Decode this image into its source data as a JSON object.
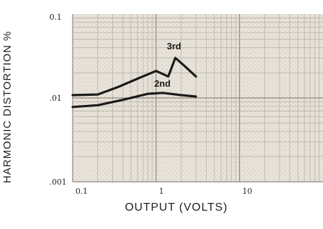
{
  "chart_data": {
    "type": "line",
    "title": "",
    "xlabel": "OUTPUT (VOLTS)",
    "ylabel": "HARMONIC DISTORTION %",
    "xscale": "log",
    "yscale": "log",
    "xlim": [
      0.1,
      100
    ],
    "ylim": [
      0.001,
      0.1
    ],
    "x_ticks": [
      0.1,
      1,
      10
    ],
    "x_tick_labels": [
      "0.1",
      "1",
      "10"
    ],
    "y_ticks": [
      0.1,
      0.01,
      0.001
    ],
    "y_tick_labels": [
      "0.1",
      ".01",
      ".001"
    ],
    "grid": true,
    "legend": "none",
    "series": [
      {
        "name": "3rd",
        "color": "#1a1a1a",
        "x": [
          0.1,
          0.2,
          0.35,
          0.6,
          1.0,
          1.4,
          1.7,
          2.2,
          3.0
        ],
        "y": [
          0.0108,
          0.011,
          0.0135,
          0.017,
          0.021,
          0.018,
          0.03,
          0.024,
          0.018
        ]
      },
      {
        "name": "2nd",
        "color": "#1a1a1a",
        "x": [
          0.1,
          0.2,
          0.4,
          0.8,
          1.2,
          2.0,
          3.0
        ],
        "y": [
          0.0078,
          0.0082,
          0.0095,
          0.0112,
          0.0115,
          0.0108,
          0.0104
        ]
      }
    ]
  }
}
